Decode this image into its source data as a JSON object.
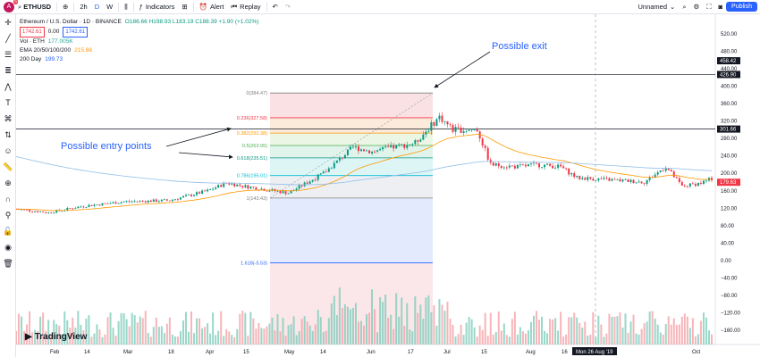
{
  "toolbar": {
    "avatar_letter": "A",
    "notif_count": "6",
    "symbol": "ETHUSD",
    "intervals": [
      "2h",
      "D",
      "W"
    ],
    "indicators_label": "Indicators",
    "alert_label": "Alert",
    "replay_label": "Replay",
    "layout_name": "Unnamed",
    "publish_label": "Publish"
  },
  "legend": {
    "title": "Ethereum / U.S. Dollar · 1D · BINANCE",
    "ohlc": "O186.66  H198.93  L183.19  C188.39  +1.90 (+1.02%)",
    "bid": "1742.61",
    "spread": "0.00",
    "ask": "1742.61",
    "vol_label": "Vol · ETH",
    "vol_value": "177.005K",
    "ema_label": "EMA 20/50/100/200",
    "ema_value": "215.88",
    "day200_label": "200 Day",
    "day200_value": "199.73"
  },
  "annotations": {
    "exit": "Possible exit",
    "entry": "Possible entry points"
  },
  "fib_levels": [
    {
      "label": "0(384.47)",
      "value": 384.47,
      "color": "#808080"
    },
    {
      "label": "0.236(327.58)",
      "value": 327.58,
      "color": "#f23645"
    },
    {
      "label": "0.382(292.38)",
      "value": 292.38,
      "color": "#ff9800"
    },
    {
      "label": "0.5(263.95)",
      "value": 263.95,
      "color": "#4caf50"
    },
    {
      "label": "0.618(235.51)",
      "value": 235.51,
      "color": "#089981"
    },
    {
      "label": "0.786(195.01)",
      "value": 195.01,
      "color": "#00bcd4"
    },
    {
      "label": "1(143.43)",
      "value": 143.43,
      "color": "#808080"
    },
    {
      "label": "1.618(-5.53)",
      "value": -5.53,
      "color": "#2962ff"
    }
  ],
  "price_axis": [
    "520.00",
    "480.00",
    "440.00",
    "400.00",
    "360.00",
    "320.00",
    "280.00",
    "240.00",
    "200.00",
    "160.00",
    "120.00",
    "80.00",
    "40.00",
    "0.00",
    "−40.00",
    "−80.00",
    "−120.00",
    "−160.00"
  ],
  "price_tags": [
    {
      "value": "458.42",
      "price": 458.42,
      "color": "#131722"
    },
    {
      "value": "426.90",
      "price": 426.9,
      "color": "#131722"
    },
    {
      "value": "301.66",
      "price": 301.66,
      "color": "#131722"
    },
    {
      "value": "179.63",
      "price": 179.63,
      "color": "#f23645"
    }
  ],
  "time_axis": [
    "Feb",
    "14",
    "Mar",
    "18",
    "Apr",
    "15",
    "May",
    "14",
    "Jun",
    "17",
    "Jul",
    "15",
    "Aug",
    "16",
    "Oct"
  ],
  "crosshair_label": "Mon 26 Aug '19",
  "logo_text": "TradingView",
  "chart_data": {
    "type": "candlestick",
    "symbol": "ETHUSD",
    "ylim": [
      -180,
      540
    ],
    "fib_range": [
      143.43,
      384.47
    ],
    "horizontal_lines": [
      426.9,
      301.66
    ],
    "price_path": [
      [
        "Jan 20",
        118
      ],
      [
        "Feb 1",
        110
      ],
      [
        "Feb 14",
        125
      ],
      [
        "Mar 1",
        135
      ],
      [
        "Mar 18",
        138
      ],
      [
        "Apr 1",
        160
      ],
      [
        "Apr 8",
        178
      ],
      [
        "Apr 15",
        170
      ],
      [
        "May 1",
        155
      ],
      [
        "May 14",
        200
      ],
      [
        "May 25",
        260
      ],
      [
        "Jun 1",
        250
      ],
      [
        "Jun 17",
        270
      ],
      [
        "Jun 26",
        330
      ],
      [
        "Jul 1",
        300
      ],
      [
        "Jul 10",
        300
      ],
      [
        "Jul 15",
        220
      ],
      [
        "Jul 25",
        215
      ],
      [
        "Aug 1",
        220
      ],
      [
        "Aug 10",
        215
      ],
      [
        "Aug 16",
        190
      ],
      [
        "Aug 26",
        186
      ],
      [
        "Sep 10",
        180
      ],
      [
        "Sep 18",
        215
      ],
      [
        "Sep 24",
        170
      ],
      [
        "Oct 1",
        178
      ],
      [
        "Oct 5",
        188
      ]
    ]
  }
}
